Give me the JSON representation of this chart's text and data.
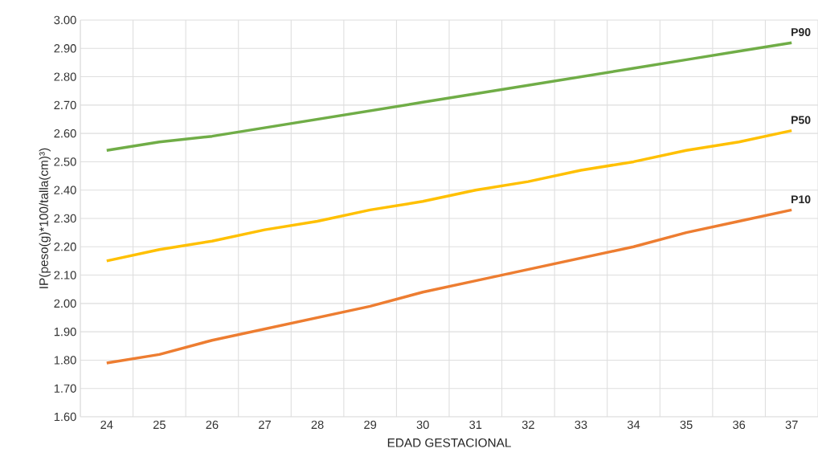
{
  "chart_data": {
    "type": "line",
    "xlabel": "EDAD GESTACIONAL",
    "ylabel": "IP(peso(g)*100/talla(cm)³)",
    "categories": [
      "24",
      "25",
      "26",
      "27",
      "28",
      "29",
      "30",
      "31",
      "32",
      "33",
      "34",
      "35",
      "36",
      "37"
    ],
    "series": [
      {
        "name": "P90",
        "color": "#70ad47",
        "values": [
          2.54,
          2.57,
          2.59,
          2.62,
          2.65,
          2.68,
          2.71,
          2.74,
          2.77,
          2.8,
          2.83,
          2.86,
          2.89,
          2.92
        ]
      },
      {
        "name": "P50",
        "color": "#ffc000",
        "values": [
          2.15,
          2.19,
          2.22,
          2.26,
          2.29,
          2.33,
          2.36,
          2.4,
          2.43,
          2.47,
          2.5,
          2.54,
          2.57,
          2.61
        ]
      },
      {
        "name": "P10",
        "color": "#ed7d31",
        "values": [
          1.79,
          1.82,
          1.87,
          1.91,
          1.95,
          1.99,
          2.04,
          2.08,
          2.12,
          2.16,
          2.2,
          2.25,
          2.29,
          2.33
        ]
      }
    ],
    "ylim": [
      1.6,
      3.0
    ],
    "yticks": [
      {
        "value": 1.6,
        "label": "1.60"
      },
      {
        "value": 1.7,
        "label": "1.70"
      },
      {
        "value": 1.8,
        "label": "1.80"
      },
      {
        "value": 1.9,
        "label": "1.90"
      },
      {
        "value": 2.0,
        "label": "2.00"
      },
      {
        "value": 2.1,
        "label": "2.10"
      },
      {
        "value": 2.2,
        "label": "2.20"
      },
      {
        "value": 2.3,
        "label": "2.30"
      },
      {
        "value": 2.4,
        "label": "2.40"
      },
      {
        "value": 2.5,
        "label": "2.50"
      },
      {
        "value": 2.6,
        "label": "2.60"
      },
      {
        "value": 2.7,
        "label": "2.70"
      },
      {
        "value": 2.8,
        "label": "2.80"
      },
      {
        "value": 2.9,
        "label": "2.90"
      },
      {
        "value": 3.0,
        "label": "3.00"
      }
    ],
    "grid": true,
    "marker": "none",
    "line_style": "solid"
  }
}
